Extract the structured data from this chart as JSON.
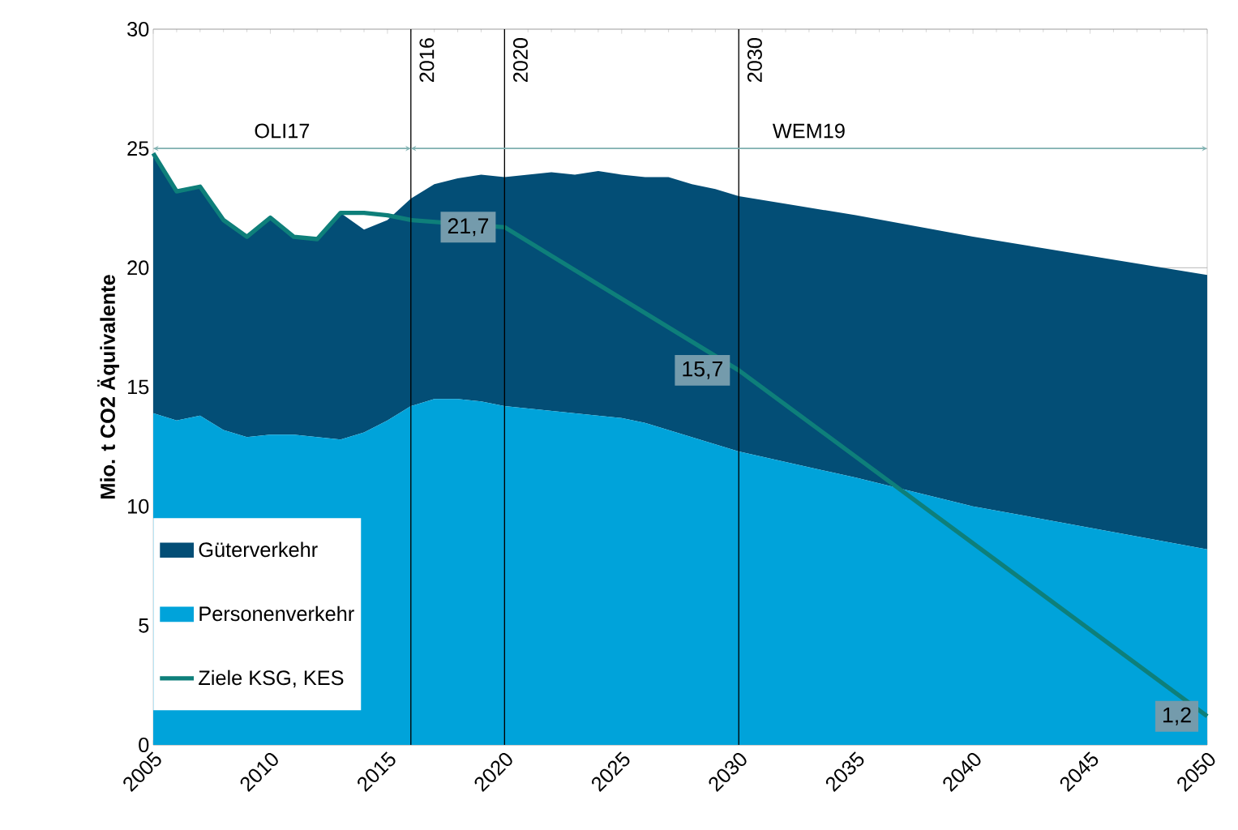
{
  "chart_data": {
    "type": "area",
    "stacked": true,
    "ylabel": "Mio. t CO2 Äquivalente",
    "xlim": [
      2005,
      2050
    ],
    "xticks": [
      2005,
      2010,
      2015,
      2020,
      2025,
      2030,
      2035,
      2040,
      2045,
      2050
    ],
    "ylim": [
      0,
      30
    ],
    "yticks": [
      0,
      5,
      10,
      15,
      20,
      25,
      30
    ],
    "grid": "y",
    "legend": "bottom left",
    "series": [
      {
        "name": "Personenverkehr",
        "color": "#00a3da",
        "x": [
          2005,
          2006,
          2007,
          2008,
          2009,
          2010,
          2011,
          2012,
          2013,
          2014,
          2015,
          2016,
          2017,
          2018,
          2019,
          2020,
          2021,
          2022,
          2023,
          2024,
          2025,
          2026,
          2027,
          2028,
          2029,
          2030,
          2035,
          2040,
          2045,
          2050
        ],
        "values": [
          13.9,
          13.6,
          13.8,
          13.2,
          12.9,
          13.0,
          13.0,
          12.9,
          12.8,
          13.1,
          13.6,
          14.2,
          14.5,
          14.5,
          14.4,
          14.2,
          14.1,
          14.0,
          13.9,
          13.8,
          13.7,
          13.5,
          13.2,
          12.9,
          12.6,
          12.3,
          11.2,
          10.0,
          9.1,
          8.2
        ]
      },
      {
        "name": "Güterverkehr",
        "color": "#034e76",
        "x": [
          2005,
          2006,
          2007,
          2008,
          2009,
          2010,
          2011,
          2012,
          2013,
          2014,
          2015,
          2016,
          2017,
          2018,
          2019,
          2020,
          2021,
          2022,
          2023,
          2024,
          2025,
          2026,
          2027,
          2028,
          2029,
          2030,
          2035,
          2040,
          2045,
          2050
        ],
        "values": [
          10.9,
          9.6,
          9.6,
          8.8,
          8.4,
          9.1,
          8.3,
          8.3,
          9.5,
          8.5,
          8.4,
          8.7,
          9.0,
          9.25,
          9.5,
          9.6,
          9.8,
          10.0,
          10.0,
          10.25,
          10.2,
          10.3,
          10.6,
          10.6,
          10.7,
          10.7,
          11.0,
          11.3,
          11.4,
          11.5
        ]
      },
      {
        "name": "Ziele KSG, KES",
        "type": "line",
        "color": "#0e7f7a",
        "x": [
          2005,
          2006,
          2007,
          2008,
          2009,
          2010,
          2011,
          2012,
          2013,
          2014,
          2015,
          2016,
          2020,
          2030,
          2050
        ],
        "values": [
          24.8,
          23.2,
          23.4,
          22.0,
          21.3,
          22.1,
          21.3,
          21.2,
          22.3,
          22.3,
          22.2,
          22.0,
          21.7,
          15.7,
          1.2
        ]
      }
    ],
    "ref_lines": [
      {
        "axis": "x",
        "value": 2016,
        "label": "2016"
      },
      {
        "axis": "x",
        "value": 2020,
        "label": "2020"
      },
      {
        "axis": "x",
        "value": 2030,
        "label": "2030"
      }
    ],
    "annotations": [
      "OLI17",
      "WEM19",
      {
        "text": "21,7",
        "x": 2020,
        "y": 21.7
      },
      {
        "text": "15,7",
        "x": 2030,
        "y": 15.7
      },
      {
        "text": "1,2",
        "x": 2050,
        "y": 1.2
      }
    ]
  }
}
